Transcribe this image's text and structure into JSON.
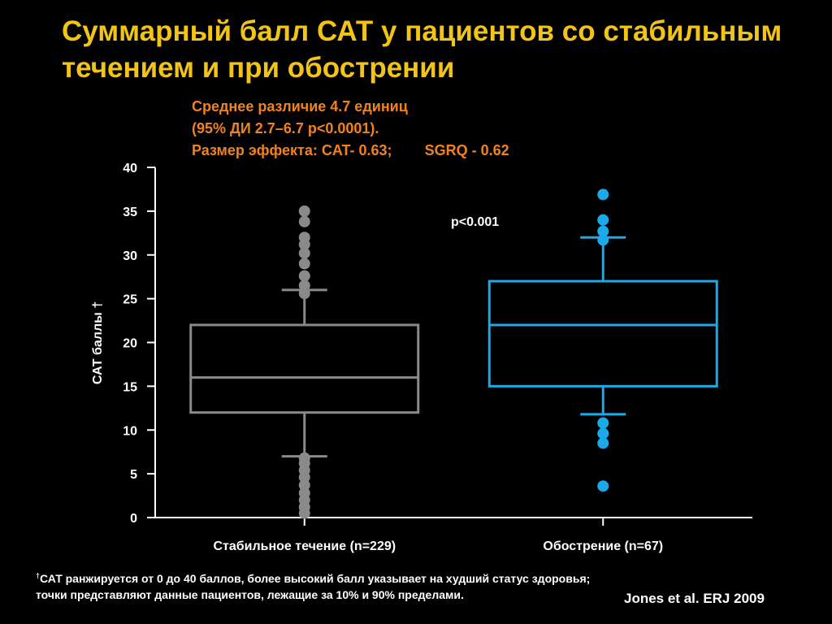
{
  "title": "Суммарный балл САТ у пациентов со стабильным течением и при обострении",
  "stats": {
    "line1": "Среднее различие 4.7 единиц",
    "line2": "(95% ДИ 2.7–6.7 p<0.0001).",
    "line3a": "Размер эффекта: CAT- 0.63;",
    "line3b": "SGRQ - 0.62"
  },
  "footnote": {
    "mark": "†",
    "text": "САТ ранжируется от 0 до 40 баллов, более высокий балл указывает на худший статус здоровья; точки представляют данные  пациентов, лежащие за  10% и 90% пределами."
  },
  "citation": "Jones et al. ERJ 2009",
  "colors": {
    "title": "#F2C418",
    "stats": "#F0831E",
    "stable": "#8A8A8A",
    "exacerbation": "#1BA9E8",
    "axis": "#FFFFFF"
  },
  "chart_data": {
    "type": "box",
    "title": "",
    "ylabel": "САТ баллы †",
    "xlabel": "",
    "ylim": [
      0,
      40
    ],
    "yticks": [
      0,
      5,
      10,
      15,
      20,
      25,
      30,
      35,
      40
    ],
    "annotation": "p<0.001",
    "series": [
      {
        "name": "Стабильное течение (n=229)",
        "color": "#8A8A8A",
        "whisker_low": 7,
        "q1": 12,
        "median": 16,
        "q3": 22,
        "whisker_high": 26,
        "outliers": [
          0.5,
          1.2,
          2,
          2.8,
          3.7,
          4.6,
          5.4,
          6.2,
          6.8,
          25.6,
          26.5,
          27.6,
          29,
          30.2,
          31.2,
          32,
          33.8,
          35
        ]
      },
      {
        "name": "Обострение (n=67)",
        "color": "#1BA9E8",
        "whisker_low": 11.8,
        "q1": 15,
        "median": 22,
        "q3": 27,
        "whisker_high": 32,
        "outliers": [
          3.6,
          8.5,
          9.6,
          10.8,
          31.7,
          32.7,
          34,
          36.9
        ]
      }
    ]
  }
}
